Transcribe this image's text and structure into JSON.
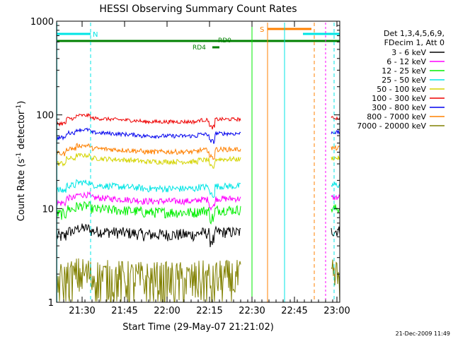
{
  "chart_data": {
    "type": "line",
    "title": "HESSI Observing Summary Count Rates",
    "xlabel": "Start Time (29-May-07 21:21:02)",
    "ylabel_main": "Count Rate (s",
    "ylabel_sup1": "-1",
    "ylabel_mid": " detector",
    "ylabel_sup2": "-1",
    "ylabel_end": ")",
    "yscale": "log",
    "ylim": [
      1,
      1000
    ],
    "xlim_minutes": [
      0,
      100
    ],
    "x_ticks": [
      {
        "t": 9,
        "label": "21:30"
      },
      {
        "t": 24,
        "label": "21:45"
      },
      {
        "t": 39,
        "label": "22:00"
      },
      {
        "t": 54,
        "label": "22:15"
      },
      {
        "t": 69,
        "label": "22:30"
      },
      {
        "t": 84,
        "label": "22:45"
      },
      {
        "t": 99,
        "label": "23:00"
      }
    ],
    "y_ticks": [
      {
        "v": 1,
        "label": "1"
      },
      {
        "v": 10,
        "label": "10"
      },
      {
        "v": 100,
        "label": "100"
      },
      {
        "v": 1000,
        "label": "1000"
      }
    ],
    "legend_header": [
      "Det 1,3,4,5,6,9,",
      "FDecim 1, Att 0"
    ],
    "series": [
      {
        "name": "3 - 6 keV",
        "color": "#000000",
        "level": 5.5,
        "amp": 0.8
      },
      {
        "name": "6 - 12 keV",
        "color": "#ff00ff",
        "level": 12.5,
        "amp": 1.0
      },
      {
        "name": "12 - 25 keV",
        "color": "#00ee00",
        "level": 9.5,
        "amp": 1.2
      },
      {
        "name": "25 - 50 keV",
        "color": "#00e5e5",
        "level": 17,
        "amp": 1.4
      },
      {
        "name": "50 - 100 keV",
        "color": "#d4d400",
        "level": 33,
        "amp": 2.0
      },
      {
        "name": "100 - 300 keV",
        "color": "#ee0000",
        "level": 88,
        "amp": 4.0
      },
      {
        "name": "300 - 800 keV",
        "color": "#0000ee",
        "level": 62,
        "amp": 3.0
      },
      {
        "name": "800 - 7000 keV",
        "color": "#ff8000",
        "level": 42,
        "amp": 2.5
      },
      {
        "name": "7000 - 20000 keV",
        "color": "#808000",
        "level": 1.8,
        "amp": 1.0
      }
    ],
    "annotations": {
      "N": {
        "label": "N",
        "color": "#00e5e5",
        "t_start": 0,
        "t_end": 12
      },
      "S": {
        "label": "S",
        "color": "#ff8000"
      },
      "RD0": {
        "label": "RD0",
        "color": "#008000"
      },
      "RD4": {
        "label": "RD4",
        "color": "#008000"
      }
    }
  },
  "footer_timestamp": "21-Dec-2009 11:49"
}
